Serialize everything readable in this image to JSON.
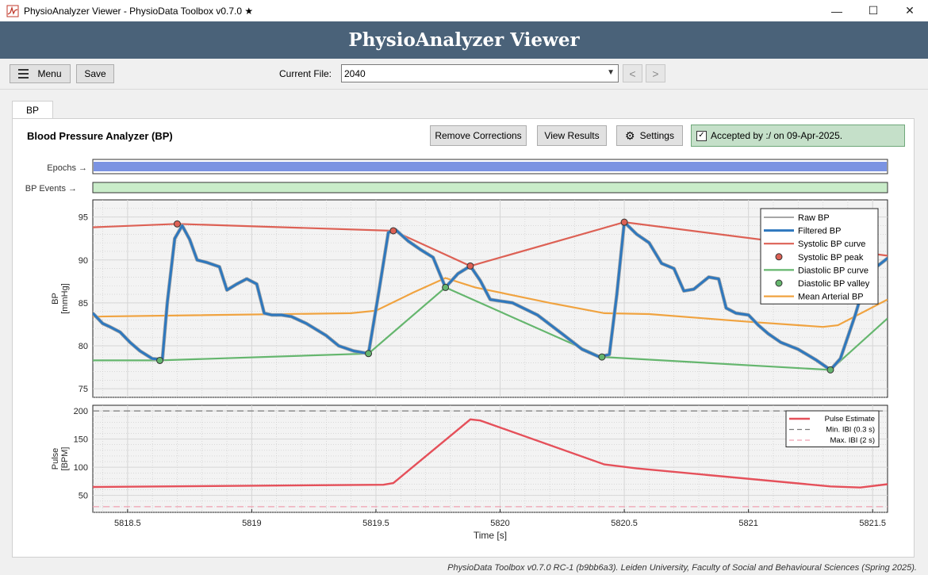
{
  "window": {
    "title": "PhysioAnalyzer Viewer - PhysioData Toolbox v0.7.0 ★",
    "minimize": "—",
    "maximize": "☐",
    "close": "✕"
  },
  "banner": {
    "title": "PhysioAnalyzer Viewer"
  },
  "toolbar": {
    "menu_label": "Menu",
    "save_label": "Save",
    "current_file_label": "Current File:",
    "current_file_value": "2040",
    "prev_label": "<",
    "next_label": ">"
  },
  "tabs": [
    {
      "label": "BP"
    }
  ],
  "panel": {
    "title": "Blood Pressure Analyzer (BP)",
    "remove_corrections_label": "Remove Corrections",
    "view_results_label": "View Results",
    "settings_label": "Settings",
    "accepted_text": "Accepted by :/ on 09-Apr-2025."
  },
  "strips": {
    "epochs_label": "Epochs →",
    "epochs_color": "#7b93e2",
    "events_label": "BP Events →",
    "events_color": "#c9ecc9"
  },
  "chart_data": [
    {
      "type": "line",
      "ylabel_line1": "BP",
      "ylabel_line2": "[mmHg]",
      "ylim": [
        74,
        97
      ],
      "yticks": [
        75,
        80,
        85,
        90,
        95
      ],
      "xlim": [
        5818.36,
        5821.56
      ],
      "grid": true,
      "legend_position": "top-right",
      "legend": [
        "Raw BP",
        "Filtered BP",
        "Systolic BP curve",
        "Systolic BP peak",
        "Diastolic BP curve",
        "Diastolic BP valley",
        "Mean Arterial BP"
      ],
      "colors": {
        "raw": "#a6a6a6",
        "filtered": "#2e78be",
        "systolic": "#dd6155",
        "diastolic": "#65b66e",
        "mean": "#f0a340"
      },
      "series": [
        {
          "name": "Systolic BP curve",
          "x": [
            5818.36,
            5818.7,
            5819.57,
            5819.88,
            5820.5,
            5821.56
          ],
          "y": [
            93.8,
            94.2,
            93.4,
            89.3,
            94.4,
            90.5
          ]
        },
        {
          "name": "Systolic BP peak",
          "x": [
            5818.7,
            5819.57,
            5819.88,
            5820.5,
            5821.35
          ],
          "y": [
            94.2,
            93.4,
            89.3,
            94.4,
            91.2
          ]
        },
        {
          "name": "Diastolic BP curve",
          "x": [
            5818.36,
            5818.63,
            5819.47,
            5819.78,
            5820.41,
            5821.33,
            5821.56
          ],
          "y": [
            78.3,
            78.3,
            79.1,
            86.8,
            78.7,
            77.2,
            83.2
          ]
        },
        {
          "name": "Diastolic BP valley",
          "x": [
            5818.63,
            5819.47,
            5819.78,
            5820.41,
            5821.33
          ],
          "y": [
            78.3,
            79.1,
            86.8,
            78.7,
            77.2
          ]
        },
        {
          "name": "Mean Arterial BP",
          "x": [
            5818.36,
            5819.4,
            5819.5,
            5819.65,
            5819.78,
            5819.9,
            5820.2,
            5820.42,
            5820.6,
            5821.0,
            5821.3,
            5821.36,
            5821.56
          ],
          "y": [
            83.4,
            83.8,
            84.1,
            86.2,
            87.9,
            86.8,
            85.0,
            83.8,
            83.7,
            82.8,
            82.2,
            82.4,
            85.4
          ]
        },
        {
          "name": "Filtered BP",
          "x": [
            5818.36,
            5818.4,
            5818.43,
            5818.47,
            5818.51,
            5818.55,
            5818.6,
            5818.64,
            5818.66,
            5818.69,
            5818.72,
            5818.75,
            5818.78,
            5818.82,
            5818.87,
            5818.9,
            5818.94,
            5818.98,
            5819.02,
            5819.05,
            5819.08,
            5819.12,
            5819.16,
            5819.22,
            5819.3,
            5819.35,
            5819.41,
            5819.47,
            5819.51,
            5819.55,
            5819.58,
            5819.63,
            5819.68,
            5819.73,
            5819.78,
            5819.83,
            5819.88,
            5819.92,
            5819.96,
            5820.05,
            5820.15,
            5820.25,
            5820.33,
            5820.4,
            5820.44,
            5820.47,
            5820.5,
            5820.55,
            5820.6,
            5820.65,
            5820.7,
            5820.74,
            5820.78,
            5820.84,
            5820.88,
            5820.91,
            5820.95,
            5821.0,
            5821.04,
            5821.08,
            5821.13,
            5821.2,
            5821.27,
            5821.33,
            5821.37,
            5821.43,
            5821.48,
            5821.56
          ],
          "y": [
            83.8,
            82.6,
            82.2,
            81.6,
            80.4,
            79.4,
            78.5,
            78.4,
            85.0,
            92.5,
            94.0,
            92.4,
            90.0,
            89.7,
            89.2,
            86.5,
            87.2,
            87.8,
            87.2,
            83.8,
            83.6,
            83.6,
            83.4,
            82.6,
            81.2,
            80.0,
            79.4,
            79.1,
            86.0,
            93.2,
            93.5,
            92.2,
            91.2,
            90.3,
            86.8,
            88.4,
            89.3,
            87.6,
            85.4,
            85.0,
            83.6,
            81.4,
            79.6,
            78.7,
            79.0,
            86.0,
            94.4,
            93.0,
            92.0,
            89.6,
            89.0,
            86.4,
            86.6,
            88.0,
            87.8,
            84.4,
            83.8,
            83.6,
            82.4,
            81.4,
            80.4,
            79.6,
            78.4,
            77.2,
            78.5,
            83.6,
            88.4,
            90.2
          ]
        }
      ]
    },
    {
      "type": "line",
      "ylabel_line1": "Pulse",
      "ylabel_line2": "[BPM]",
      "xlabel": "Time [s]",
      "ylim": [
        20,
        210
      ],
      "yticks": [
        50,
        100,
        150,
        200
      ],
      "xlim": [
        5818.36,
        5821.56
      ],
      "xticks": [
        5818.5,
        5819,
        5819.5,
        5820,
        5820.5,
        5821,
        5821.5
      ],
      "grid": true,
      "legend_position": "top-right",
      "legend": [
        "Pulse Estimate",
        "Min. IBI (0.3 s)",
        "Max. IBI (2 s)"
      ],
      "colors": {
        "pulse": "#e5505a",
        "min_ibi": "#7a7a7a",
        "max_ibi": "#f0a0b0"
      },
      "series": [
        {
          "name": "Pulse Estimate",
          "x": [
            5818.36,
            5819.53,
            5819.57,
            5819.88,
            5819.92,
            5820.42,
            5820.55,
            5821.33,
            5821.45,
            5821.56
          ],
          "y": [
            65,
            69,
            72,
            185,
            183,
            105,
            98,
            66,
            64,
            70
          ]
        },
        {
          "name": "Min. IBI (0.3 s)",
          "x": [
            5818.36,
            5821.56
          ],
          "y": [
            200,
            200
          ]
        },
        {
          "name": "Max. IBI (2 s)",
          "x": [
            5818.36,
            5821.56
          ],
          "y": [
            30,
            30
          ]
        }
      ]
    }
  ],
  "footer": {
    "text": "PhysioData Toolbox v0.7.0 RC-1 (b9bb6a3). Leiden University, Faculty of Social and Behavioural Sciences (Spring 2025)."
  }
}
